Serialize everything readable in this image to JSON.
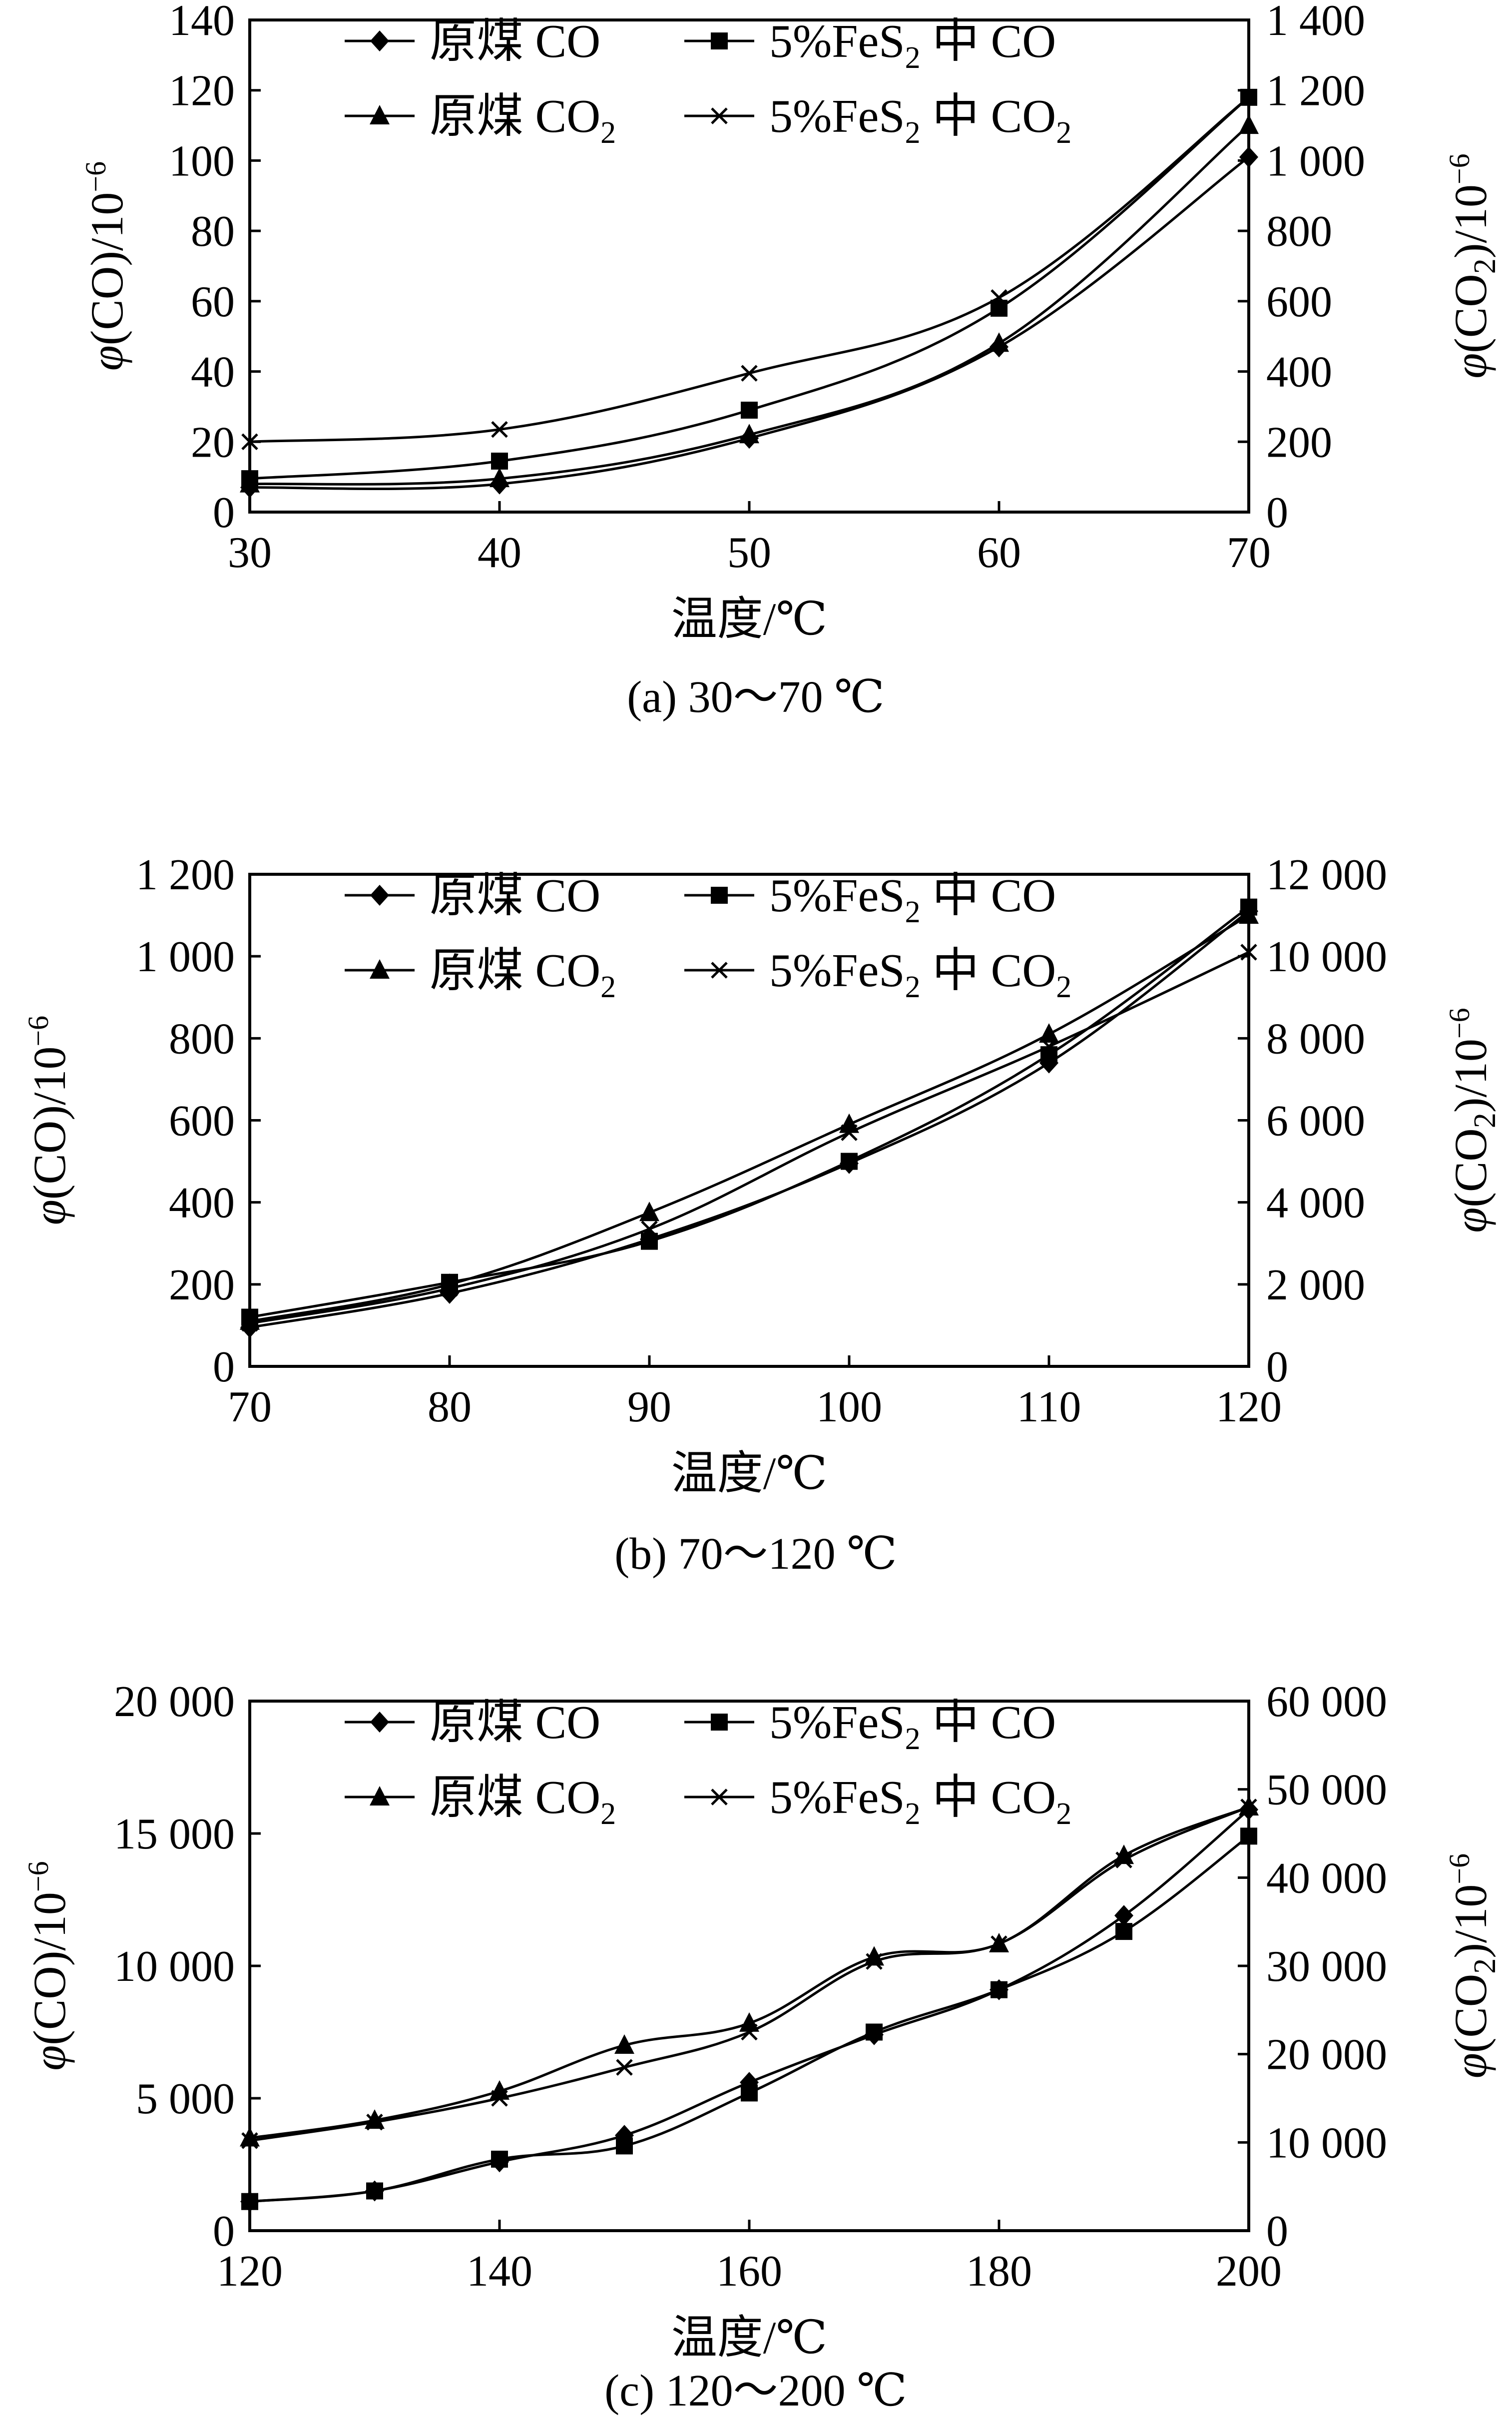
{
  "figure": {
    "panels": [
      {
        "id": "a",
        "caption": "(a)  30～70 ℃",
        "ylabel_left": "φ(CO)/10⁻⁶",
        "ylabel_right": "φ(CO₂)/10⁻⁶"
      },
      {
        "id": "b",
        "caption": "(b)  70～120 ℃",
        "ylabel_left": "φ(CO)/10⁻⁶",
        "ylabel_right": "φ(CO₂)/10⁻⁶"
      },
      {
        "id": "c",
        "caption": "(c)  120～200 ℃",
        "ylabel_left": "φ(CO)/10⁻⁶",
        "ylabel_right": "φ(CO₂)/10⁻⁶"
      }
    ]
  },
  "chart_data": [
    {
      "type": "line",
      "caption": "(a)  30～70 ℃",
      "xlabel": "温度/℃",
      "ylabel": "φ(CO)/10⁻⁶",
      "ylabel_right": "φ(CO₂)/10⁻⁶",
      "x": [
        30,
        40,
        50,
        60,
        70
      ],
      "xlim": [
        30,
        70
      ],
      "xticks": [
        "30",
        "40",
        "50",
        "60",
        "70"
      ],
      "ylim": [
        0,
        140
      ],
      "yticks": [
        "0",
        "20",
        "40",
        "60",
        "80",
        "100",
        "120",
        "140"
      ],
      "ylim_right": [
        0,
        1400
      ],
      "yticks_right": [
        "0",
        "200",
        "400",
        "600",
        "800",
        "1 000",
        "1 200",
        "1 400"
      ],
      "grid": false,
      "legend_position": "top",
      "series": [
        {
          "name": "原煤 CO",
          "axis": "left",
          "marker": "diamond",
          "values": [
            7,
            8,
            21,
            47,
            101
          ]
        },
        {
          "name": "5%FeS₂ 中 CO",
          "axis": "left",
          "marker": "square",
          "values": [
            9.5,
            14.5,
            29,
            58,
            118
          ]
        },
        {
          "name": "原煤 CO₂",
          "axis": "right",
          "marker": "triangle",
          "values": [
            80,
            95,
            220,
            480,
            1100
          ]
        },
        {
          "name": "5%FeS₂ 中 CO₂",
          "axis": "right",
          "marker": "x",
          "values": [
            200,
            235,
            395,
            610,
            1180
          ]
        }
      ]
    },
    {
      "type": "line",
      "caption": "(b)  70～120 ℃",
      "xlabel": "温度/℃",
      "ylabel": "φ(CO)/10⁻⁶",
      "ylabel_right": "φ(CO₂)/10⁻⁶",
      "x": [
        70,
        80,
        90,
        100,
        110,
        120
      ],
      "xlim": [
        70,
        120
      ],
      "xticks": [
        "70",
        "80",
        "90",
        "100",
        "110",
        "120"
      ],
      "ylim": [
        0,
        1200
      ],
      "yticks": [
        "0",
        "200",
        "400",
        "600",
        "800",
        "1 000",
        "1 200"
      ],
      "ylim_right": [
        0,
        12000
      ],
      "yticks_right": [
        "0",
        "2 000",
        "4 000",
        "6 000",
        "8 000",
        "10 000",
        "12 000"
      ],
      "grid": false,
      "legend_position": "top",
      "series": [
        {
          "name": "原煤 CO",
          "axis": "left",
          "marker": "diamond",
          "values": [
            95,
            178,
            310,
            495,
            740,
            1110
          ]
        },
        {
          "name": "5%FeS₂ 中 CO",
          "axis": "left",
          "marker": "square",
          "values": [
            120,
            205,
            305,
            500,
            760,
            1120
          ]
        },
        {
          "name": "原煤 CO₂",
          "axis": "right",
          "marker": "triangle",
          "values": [
            1100,
            2000,
            3750,
            5900,
            8100,
            11000
          ]
        },
        {
          "name": "5%FeS₂ 中 CO₂",
          "axis": "right",
          "marker": "x",
          "values": [
            1050,
            1900,
            3350,
            5700,
            7800,
            10100
          ]
        }
      ]
    },
    {
      "type": "line",
      "caption": "(c)  120～200 ℃",
      "xlabel": "温度/℃",
      "ylabel": "φ(CO)/10⁻⁶",
      "ylabel_right": "φ(CO₂)/10⁻⁶",
      "x": [
        120,
        130,
        140,
        150,
        160,
        170,
        180,
        190,
        200
      ],
      "xlim": [
        120,
        200
      ],
      "xticks": [
        "120",
        "140",
        "160",
        "180",
        "200"
      ],
      "ylim": [
        0,
        20000
      ],
      "yticks": [
        "0",
        "5 000",
        "10 000",
        "15 000",
        "20 000"
      ],
      "ylim_right": [
        0,
        60000
      ],
      "yticks_right": [
        "0",
        "10 000",
        "20 000",
        "30 000",
        "40 000",
        "50 000",
        "60 000"
      ],
      "grid": false,
      "legend_position": "top",
      "series": [
        {
          "name": "原煤 CO",
          "axis": "left",
          "marker": "diamond",
          "values": [
            1100,
            1500,
            2600,
            3600,
            5600,
            7400,
            9100,
            11900,
            15900
          ]
        },
        {
          "name": "5%FeS₂ 中 CO",
          "axis": "left",
          "marker": "square",
          "values": [
            1100,
            1500,
            2700,
            3200,
            5200,
            7500,
            9100,
            11300,
            14900
          ]
        },
        {
          "name": "原煤 CO₂",
          "axis": "right",
          "marker": "triangle",
          "values": [
            10500,
            12500,
            15800,
            21000,
            23500,
            31000,
            32500,
            42500,
            48000
          ]
        },
        {
          "name": "5%FeS₂ 中 CO₂",
          "axis": "right",
          "marker": "x",
          "values": [
            10200,
            12300,
            15000,
            18500,
            22500,
            30500,
            32500,
            42000,
            48000
          ]
        }
      ]
    }
  ]
}
